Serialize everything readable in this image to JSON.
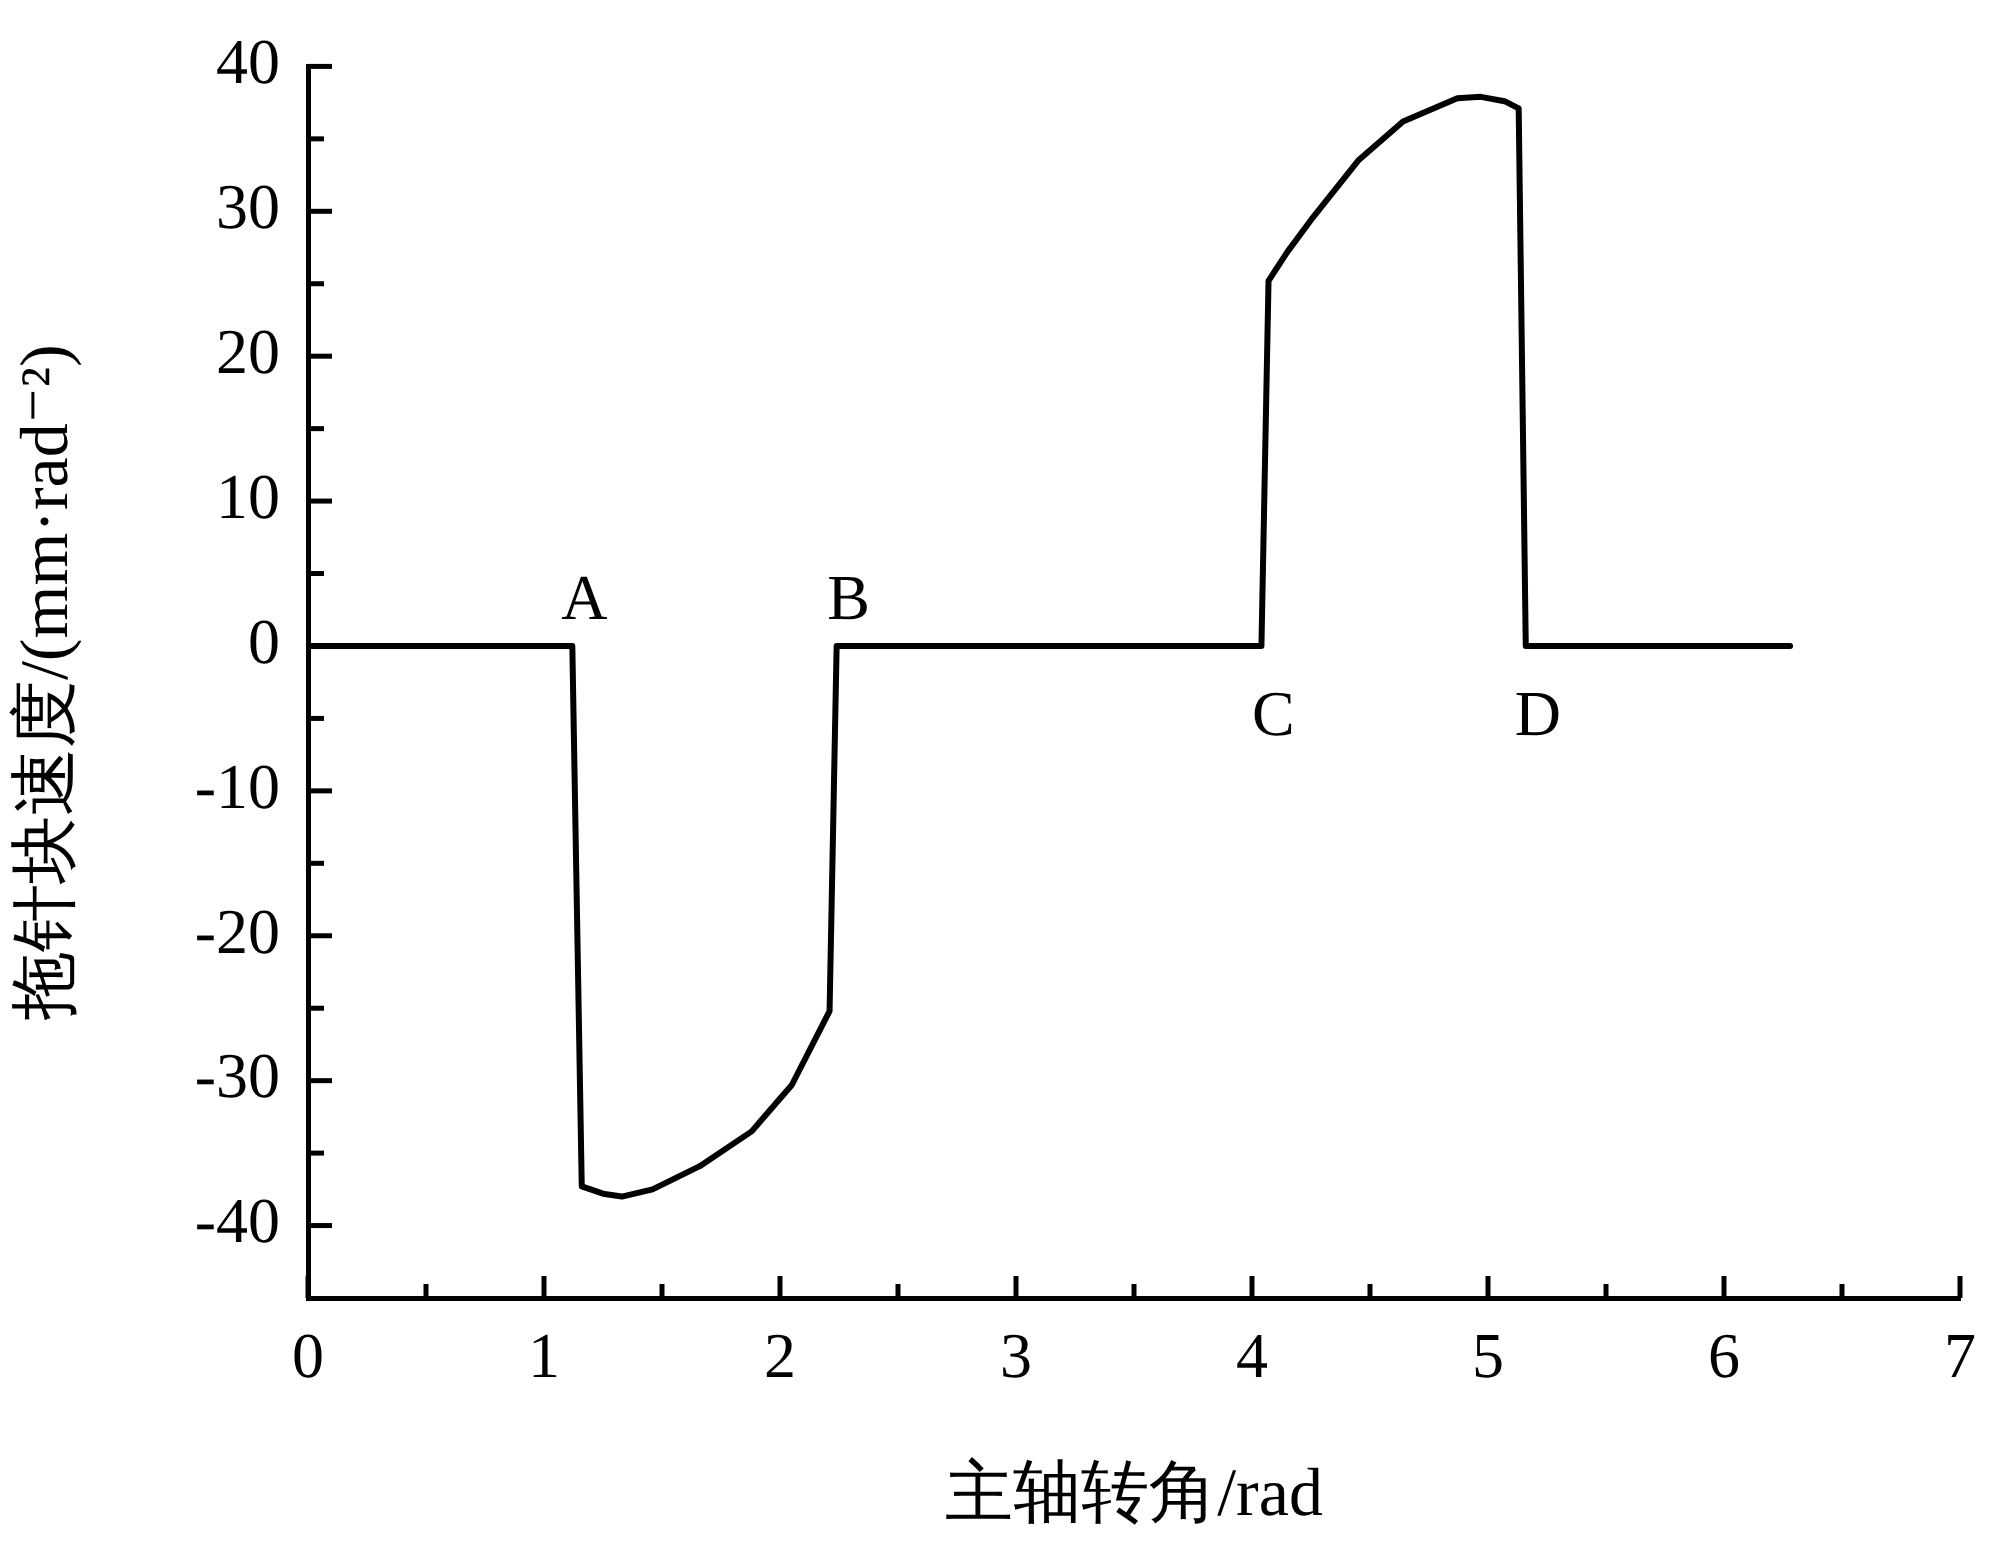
{
  "chart_data": {
    "type": "line",
    "xlabel": "主轴转角/rad",
    "ylabel": "拖针块速度/(mm·rad⁻²)",
    "x": [
      0,
      1.12,
      1.16,
      1.25,
      1.33,
      1.46,
      1.66,
      1.88,
      2.05,
      2.21,
      2.24,
      4.04,
      4.07,
      4.15,
      4.25,
      4.45,
      4.64,
      4.87,
      4.97,
      5.07,
      5.13,
      5.16,
      6.28
    ],
    "series": [
      {
        "color": "#000000",
        "values": [
          0,
          0,
          -37.3,
          -37.8,
          -38,
          -37.5,
          -35.9,
          -33.5,
          -30.3,
          -25.2,
          0,
          0,
          25.2,
          27.2,
          29.4,
          33.5,
          36.2,
          37.8,
          37.9,
          37.6,
          37.1,
          0,
          0
        ]
      }
    ],
    "xlim": [
      0,
      7
    ],
    "ylim": [
      -45,
      40
    ],
    "xticks": [
      0,
      {
        "value": 0.5,
        "label": null
      },
      1,
      {
        "value": 1.5,
        "label": null
      },
      2,
      {
        "value": 2.5,
        "label": null
      },
      3,
      {
        "value": 3.5,
        "label": null
      },
      4,
      {
        "value": 4.5,
        "label": null
      },
      5,
      {
        "value": 5.5,
        "label": null
      },
      6,
      {
        "value": 6.5,
        "label": null
      },
      7
    ],
    "yticks": [
      -40,
      {
        "value": -35,
        "label": null
      },
      -30,
      {
        "value": -25,
        "label": null
      },
      -20,
      {
        "value": -15,
        "label": null
      },
      -10,
      {
        "value": -5,
        "label": null
      },
      0,
      {
        "value": 5,
        "label": null
      },
      10,
      {
        "value": 15,
        "label": null
      },
      20,
      {
        "value": 25,
        "label": null
      },
      30,
      {
        "value": 35,
        "label": null
      },
      40
    ],
    "annotations": [
      {
        "text": "A",
        "x": 1.12,
        "y": 0
      },
      {
        "text": "B",
        "x": 2.24,
        "y": 0
      },
      {
        "text": "C",
        "x": 4.04,
        "y": 0
      },
      {
        "text": "D",
        "x": 5.16,
        "y": 0
      }
    ],
    "marker": "none",
    "line_style": "solid"
  }
}
